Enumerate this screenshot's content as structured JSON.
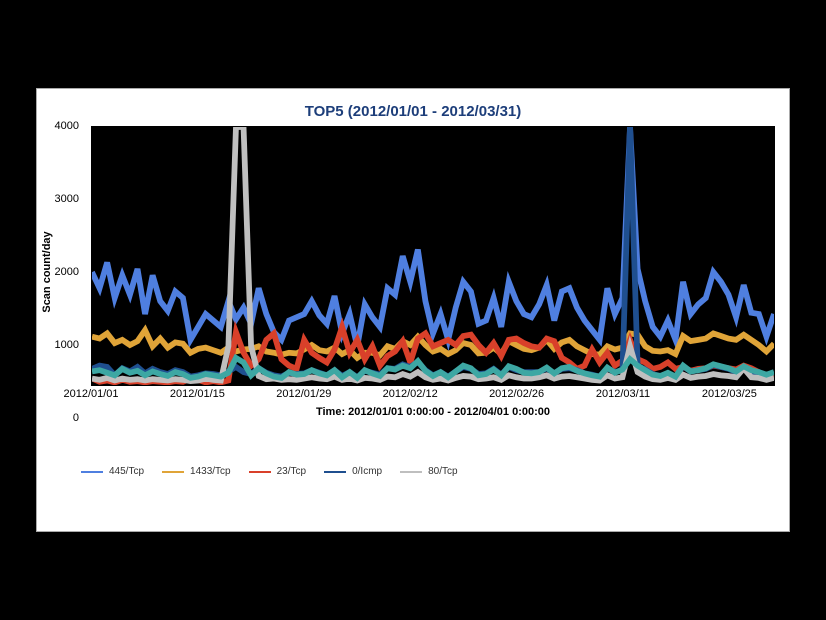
{
  "title": "TOP5 (2012/01/01 - 2012/03/31)",
  "title_color": "#1d3e7a",
  "title_fontsize": 15,
  "card_bg": "#ffffff",
  "page_bg": "#000000",
  "plot_bg": "#000000",
  "axis_color": "#000000",
  "tick_fontsize": 11,
  "label_fontsize": 11,
  "ylabel": "Scan count/day",
  "xlabel": "Time: 2012/01/01 0:00:00 - 2012/04/01 0:00:00",
  "ylim": [
    0,
    4000
  ],
  "yticks": [
    0,
    1000,
    2000,
    3000,
    4000
  ],
  "x_domain": [
    0,
    90
  ],
  "xticks": [
    {
      "pos": 0,
      "label": "2012/01/01"
    },
    {
      "pos": 14,
      "label": "2012/01/15"
    },
    {
      "pos": 28,
      "label": "2012/01/29"
    },
    {
      "pos": 42,
      "label": "2012/02/12"
    },
    {
      "pos": 56,
      "label": "2012/02/26"
    },
    {
      "pos": 70,
      "label": "2012/03/11"
    },
    {
      "pos": 84,
      "label": "2012/03/25"
    }
  ],
  "line_width": 1.5,
  "series": [
    {
      "name": "445/Tcp",
      "color": "#4f7fe0",
      "values": [
        1750,
        1500,
        1900,
        1350,
        1700,
        1400,
        1800,
        1100,
        1700,
        1300,
        1150,
        1450,
        1350,
        700,
        900,
        1100,
        1000,
        900,
        1300,
        1020,
        1200,
        950,
        1500,
        1100,
        820,
        700,
        1000,
        1050,
        1100,
        1300,
        1080,
        950,
        1380,
        800,
        1100,
        600,
        1250,
        1050,
        900,
        1500,
        1400,
        2000,
        1600,
        2100,
        1300,
        800,
        1100,
        700,
        1200,
        1600,
        1450,
        950,
        1000,
        1350,
        900,
        1600,
        1300,
        1100,
        1050,
        1250,
        1550,
        1000,
        1450,
        1500,
        1200,
        1000,
        850,
        700,
        1500,
        1100,
        1350,
        4200,
        1800,
        1300,
        900,
        750,
        1000,
        700,
        1600,
        1100,
        1250,
        1350,
        1750,
        1600,
        1400,
        1050,
        1550,
        1120,
        1100,
        750,
        1100
      ]
    },
    {
      "name": "1433/Tcp",
      "color": "#e0a438",
      "values": [
        750,
        720,
        800,
        650,
        700,
        620,
        680,
        850,
        600,
        720,
        580,
        660,
        640,
        500,
        560,
        580,
        540,
        500,
        580,
        520,
        550,
        560,
        600,
        520,
        500,
        470,
        500,
        490,
        550,
        620,
        540,
        520,
        580,
        480,
        540,
        420,
        500,
        500,
        460,
        600,
        560,
        680,
        620,
        750,
        620,
        520,
        560,
        480,
        540,
        650,
        620,
        490,
        500,
        580,
        480,
        680,
        620,
        560,
        540,
        580,
        700,
        560,
        660,
        700,
        600,
        540,
        480,
        470,
        600,
        550,
        580,
        800,
        780,
        600,
        530,
        520,
        540,
        480,
        760,
        680,
        700,
        720,
        800,
        760,
        720,
        700,
        780,
        700,
        620,
        520,
        640
      ]
    },
    {
      "name": "23/Tcp",
      "color": "#d9402a",
      "values": [
        100,
        50,
        70,
        40,
        80,
        50,
        60,
        40,
        60,
        50,
        40,
        60,
        50,
        100,
        80,
        40,
        60,
        40,
        70,
        820,
        500,
        300,
        400,
        700,
        800,
        400,
        300,
        250,
        700,
        500,
        420,
        350,
        550,
        900,
        500,
        700,
        400,
        600,
        300,
        450,
        520,
        680,
        350,
        720,
        800,
        600,
        650,
        700,
        620,
        760,
        780,
        620,
        500,
        650,
        450,
        700,
        720,
        650,
        600,
        580,
        720,
        680,
        420,
        350,
        250,
        300,
        550,
        350,
        500,
        300,
        380,
        700,
        400,
        350,
        250,
        280,
        350,
        250,
        280,
        220,
        250,
        260,
        300,
        280,
        260,
        240,
        300,
        260,
        200,
        130,
        120
      ]
    },
    {
      "name": "0/Icmp",
      "color": "#1f4f8f",
      "values": [
        250,
        300,
        280,
        150,
        260,
        210,
        280,
        180,
        250,
        200,
        170,
        230,
        200,
        130,
        150,
        180,
        170,
        150,
        210,
        280,
        200,
        170,
        260,
        190,
        150,
        130,
        190,
        170,
        180,
        230,
        190,
        150,
        230,
        140,
        200,
        120,
        220,
        190,
        160,
        260,
        250,
        320,
        280,
        360,
        230,
        150,
        200,
        130,
        210,
        280,
        250,
        170,
        180,
        250,
        160,
        280,
        230,
        200,
        200,
        200,
        260,
        180,
        250,
        260,
        230,
        180,
        160,
        130,
        260,
        200,
        230,
        4300,
        300,
        240,
        170,
        140,
        180,
        130,
        290,
        210,
        230,
        250,
        310,
        280,
        250,
        200,
        280,
        200,
        200,
        150,
        200
      ]
    },
    {
      "name": "80/Tcp",
      "color": "#bfbfbf",
      "values": [
        100,
        80,
        110,
        70,
        100,
        80,
        90,
        70,
        90,
        80,
        70,
        90,
        80,
        60,
        70,
        100,
        80,
        70,
        600,
        4100,
        4200,
        600,
        140,
        90,
        100,
        80,
        90,
        80,
        100,
        120,
        100,
        90,
        130,
        80,
        100,
        70,
        110,
        100,
        80,
        130,
        120,
        170,
        130,
        200,
        120,
        80,
        100,
        70,
        110,
        140,
        130,
        90,
        100,
        120,
        80,
        150,
        120,
        100,
        100,
        120,
        150,
        100,
        130,
        140,
        120,
        100,
        80,
        70,
        150,
        100,
        120,
        600,
        200,
        130,
        90,
        80,
        110,
        80,
        160,
        110,
        130,
        140,
        170,
        150,
        140,
        120,
        260,
        120,
        110,
        80,
        110
      ]
    },
    {
      "name": "_other_teal",
      "legend": false,
      "color": "#3da7a3",
      "values": [
        210,
        230,
        190,
        150,
        250,
        190,
        220,
        150,
        210,
        170,
        140,
        200,
        170,
        110,
        130,
        170,
        150,
        130,
        190,
        420,
        350,
        150,
        260,
        180,
        130,
        110,
        200,
        160,
        170,
        230,
        180,
        150,
        230,
        120,
        200,
        110,
        230,
        180,
        140,
        260,
        240,
        300,
        260,
        370,
        220,
        140,
        200,
        120,
        210,
        300,
        260,
        150,
        170,
        240,
        150,
        290,
        250,
        190,
        180,
        200,
        270,
        180,
        260,
        280,
        220,
        180,
        150,
        130,
        270,
        190,
        240,
        400,
        300,
        230,
        160,
        140,
        190,
        130,
        300,
        210,
        230,
        260,
        320,
        290,
        260,
        210,
        290,
        230,
        200,
        160,
        200
      ]
    }
  ],
  "legend_fontsize": 10,
  "legend_swatch_width": 22
}
